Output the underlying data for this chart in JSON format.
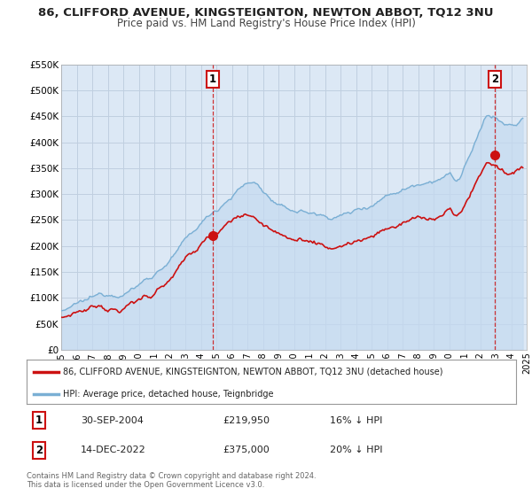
{
  "title1": "86, CLIFFORD AVENUE, KINGSTEIGNTON, NEWTON ABBOT, TQ12 3NU",
  "title2": "Price paid vs. HM Land Registry's House Price Index (HPI)",
  "red_legend": "86, CLIFFORD AVENUE, KINGSTEIGNTON, NEWTON ABBOT, TQ12 3NU (detached house)",
  "blue_legend": "HPI: Average price, detached house, Teignbridge",
  "annotation1_label": "1",
  "annotation1_date": "30-SEP-2004",
  "annotation1_price": "£219,950",
  "annotation1_hpi": "16% ↓ HPI",
  "annotation2_label": "2",
  "annotation2_date": "14-DEC-2022",
  "annotation2_price": "£375,000",
  "annotation2_hpi": "20% ↓ HPI",
  "footer1": "Contains HM Land Registry data © Crown copyright and database right 2024.",
  "footer2": "This data is licensed under the Open Government Licence v3.0.",
  "sale1_year": 2004.75,
  "sale1_value": 219950,
  "sale2_year": 2022.96,
  "sale2_value": 375000,
  "ylim_max": 550000,
  "ylim_min": 0,
  "xlim_min": 1995,
  "xlim_max": 2025,
  "bg_color": "#dce8f5",
  "plot_bg": "#ffffff",
  "grid_color": "#c0cfe0",
  "red_color": "#cc1111",
  "blue_color": "#7aafd4",
  "blue_fill_color": "#c5daf0"
}
